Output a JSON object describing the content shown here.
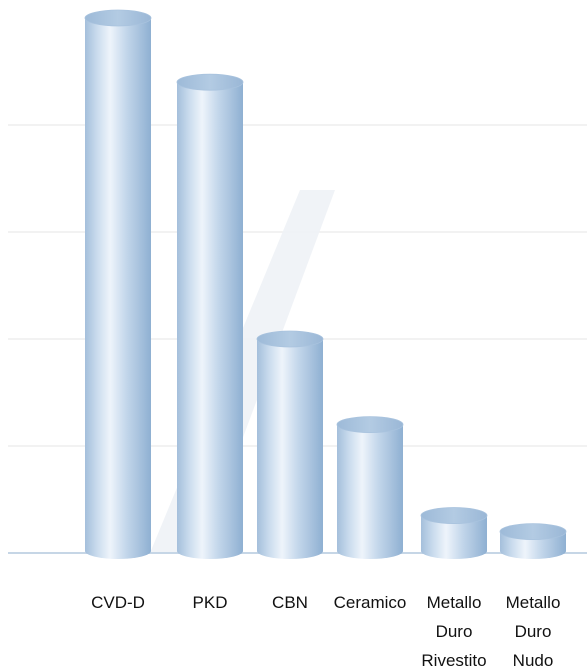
{
  "chart_data": {
    "type": "bar",
    "style": "cylinder",
    "categories": [
      [
        "CVD-D"
      ],
      [
        "PKD"
      ],
      [
        "CBN"
      ],
      [
        "Ceramico"
      ],
      [
        "Metallo",
        "Duro",
        "Rivestito"
      ],
      [
        "Metallo",
        "Duro",
        "Nudo"
      ]
    ],
    "values": [
      100,
      88,
      40,
      24,
      7,
      4
    ],
    "ylim": [
      0,
      100
    ],
    "grid": true,
    "title": "",
    "xlabel": "",
    "ylabel": ""
  },
  "colors": {
    "bar_light": "#e8f1fa",
    "bar_mid": "#b6cde4",
    "bar_dark": "#8fb0d2",
    "bar_top": "#a6c2de",
    "gridline": "#e6e6e6",
    "baseline": "#c6d6e6",
    "text": "#111111"
  }
}
